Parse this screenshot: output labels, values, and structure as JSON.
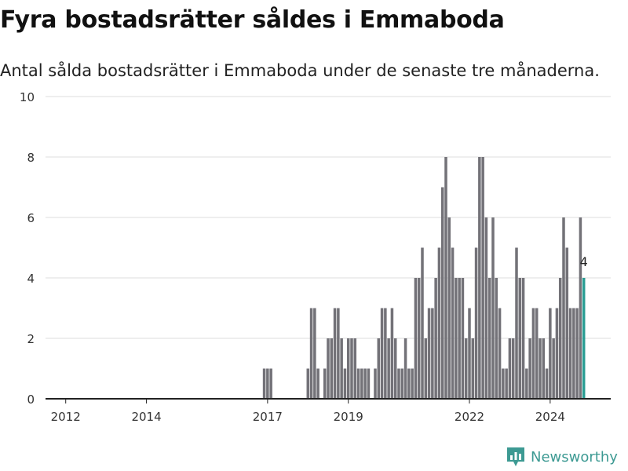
{
  "header": {
    "title": "Fyra bostadsrätter såldes i Emmaboda",
    "subtitle": "Antal sålda bostadsrätter i Emmaboda under de senaste tre månaderna."
  },
  "brand": {
    "name": "Newsworthy",
    "icon": "newsworthy-logo-icon",
    "color": "#3d9a93"
  },
  "chart_data": {
    "type": "bar",
    "title": "Fyra bostadsrätter såldes i Emmaboda",
    "subtitle": "Antal sålda bostadsrätter i Emmaboda under de senaste tre månaderna.",
    "xlabel": "",
    "ylabel": "",
    "ylim": [
      0,
      10
    ],
    "yticks": [
      0,
      2,
      4,
      6,
      8,
      10
    ],
    "xlim": [
      "2011-07",
      "2025-07"
    ],
    "xticks": [
      "2012",
      "2014",
      "2017",
      "2019",
      "2022",
      "2024"
    ],
    "grid": true,
    "bar_color": "#737278",
    "highlight_color": "#2a9d93",
    "highlight_label": "4",
    "series": [
      {
        "dates": [
          "2016-12",
          "2017-01",
          "2017-02",
          "2017-03",
          "2017-04",
          "2017-05",
          "2017-06",
          "2017-07",
          "2017-08",
          "2017-09",
          "2017-10",
          "2017-11",
          "2017-12",
          "2018-01",
          "2018-02",
          "2018-03",
          "2018-04",
          "2018-05",
          "2018-06",
          "2018-07",
          "2018-08",
          "2018-09",
          "2018-10",
          "2018-11",
          "2018-12",
          "2019-01",
          "2019-02",
          "2019-03",
          "2019-04",
          "2019-05",
          "2019-06",
          "2019-07",
          "2019-08",
          "2019-09",
          "2019-10",
          "2019-11",
          "2019-12",
          "2020-01",
          "2020-02",
          "2020-03",
          "2020-04",
          "2020-05",
          "2020-06",
          "2020-07",
          "2020-08",
          "2020-09",
          "2020-10",
          "2020-11",
          "2020-12",
          "2021-01",
          "2021-02",
          "2021-03",
          "2021-04",
          "2021-05",
          "2021-06",
          "2021-07",
          "2021-08",
          "2021-09",
          "2021-10",
          "2021-11",
          "2021-12",
          "2022-01",
          "2022-02",
          "2022-03",
          "2022-04",
          "2022-05",
          "2022-06",
          "2022-07",
          "2022-08",
          "2022-09",
          "2022-10",
          "2022-11",
          "2022-12",
          "2023-01",
          "2023-02",
          "2023-03",
          "2023-04",
          "2023-05",
          "2023-06",
          "2023-07",
          "2023-08",
          "2023-09",
          "2023-10",
          "2023-11",
          "2023-12",
          "2024-01",
          "2024-02",
          "2024-03",
          "2024-04",
          "2024-05",
          "2024-06",
          "2024-07",
          "2024-08",
          "2024-09",
          "2024-10",
          "2024-11"
        ],
        "values": [
          1,
          1,
          1,
          0,
          0,
          0,
          0,
          0,
          0,
          0,
          0,
          0,
          0,
          1,
          3,
          3,
          1,
          0,
          1,
          2,
          2,
          3,
          3,
          2,
          1,
          2,
          2,
          2,
          1,
          1,
          1,
          1,
          0,
          1,
          2,
          3,
          3,
          2,
          3,
          2,
          1,
          1,
          2,
          1,
          1,
          4,
          4,
          5,
          2,
          3,
          3,
          4,
          5,
          7,
          8,
          6,
          5,
          4,
          4,
          4,
          2,
          3,
          2,
          5,
          8,
          8,
          6,
          4,
          6,
          4,
          3,
          1,
          1,
          2,
          2,
          5,
          4,
          4,
          1,
          2,
          3,
          3,
          2,
          2,
          1,
          3,
          2,
          3,
          4,
          6,
          5,
          3,
          3,
          3,
          6,
          4
        ]
      }
    ]
  }
}
